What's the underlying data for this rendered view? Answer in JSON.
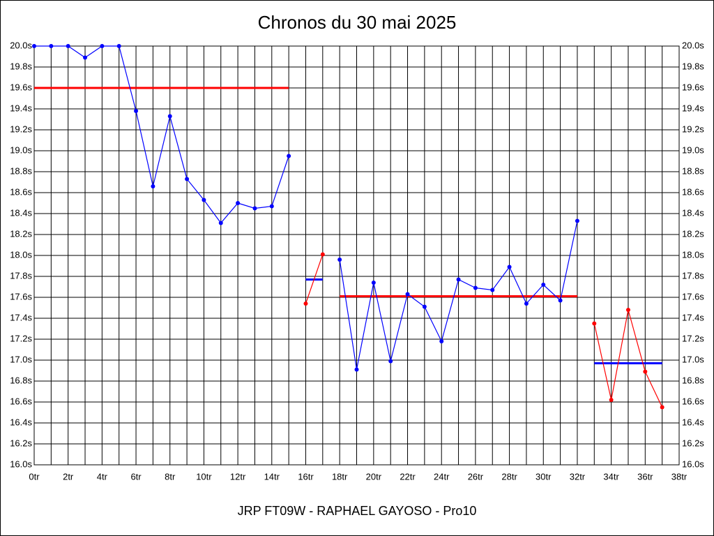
{
  "chart_data": {
    "type": "line",
    "title": "Chronos du 30 mai 2025",
    "x_label": "JRP FT09W - RAPHAEL GAYOSO - Pro10",
    "x": [
      0,
      1,
      2,
      3,
      4,
      5,
      6,
      7,
      8,
      9,
      10,
      11,
      12,
      13,
      14,
      15,
      16,
      17,
      18,
      19,
      20,
      21,
      22,
      23,
      24,
      25,
      26,
      27,
      28,
      29,
      30,
      31,
      32,
      33,
      34,
      35,
      36,
      37
    ],
    "series": [
      {
        "color": "#0000ff",
        "values": [
          20.0,
          20.0,
          20.0,
          19.89,
          20.0,
          20.0,
          19.38,
          18.66,
          19.33,
          18.73,
          18.53,
          18.31,
          18.5,
          18.45,
          18.47,
          18.95,
          null,
          null,
          17.96,
          16.91,
          17.74,
          16.99,
          17.63,
          17.51,
          17.18,
          17.77,
          17.69,
          17.67,
          17.89,
          17.54,
          17.72,
          17.57,
          18.33,
          null,
          null,
          null,
          null,
          null
        ]
      },
      {
        "color": "#ff0000",
        "values": [
          null,
          null,
          null,
          null,
          null,
          null,
          null,
          null,
          null,
          null,
          null,
          null,
          null,
          null,
          null,
          null,
          17.54,
          18.01,
          null,
          null,
          null,
          null,
          null,
          null,
          null,
          null,
          null,
          null,
          null,
          null,
          null,
          null,
          null,
          17.35,
          16.62,
          17.48,
          16.89,
          16.55
        ]
      }
    ],
    "averages": [
      {
        "x": [
          0,
          15
        ],
        "value": 19.6,
        "color": "#ff0000"
      },
      {
        "x": [
          16,
          17
        ],
        "value": 17.77,
        "color": "#0000ff"
      },
      {
        "x": [
          18,
          32
        ],
        "value": 17.61,
        "color": "#ff0000"
      },
      {
        "x": [
          33,
          37
        ],
        "value": 16.97,
        "color": "#0000ff"
      }
    ],
    "xlim": [
      0,
      38
    ],
    "ylim": [
      16.0,
      20.0
    ],
    "xticks": [
      {
        "value": 0,
        "label": "0tr"
      },
      {
        "value": 2,
        "label": "2tr"
      },
      {
        "value": 4,
        "label": "4tr"
      },
      {
        "value": 6,
        "label": "6tr"
      },
      {
        "value": 8,
        "label": "8tr"
      },
      {
        "value": 10,
        "label": "10tr"
      },
      {
        "value": 12,
        "label": "12tr"
      },
      {
        "value": 14,
        "label": "14tr"
      },
      {
        "value": 16,
        "label": "16tr"
      },
      {
        "value": 18,
        "label": "18tr"
      },
      {
        "value": 20,
        "label": "20tr"
      },
      {
        "value": 22,
        "label": "22tr"
      },
      {
        "value": 24,
        "label": "24tr"
      },
      {
        "value": 26,
        "label": "26tr"
      },
      {
        "value": 28,
        "label": "28tr"
      },
      {
        "value": 30,
        "label": "30tr"
      },
      {
        "value": 32,
        "label": "32tr"
      },
      {
        "value": 34,
        "label": "34tr"
      },
      {
        "value": 36,
        "label": "36tr"
      },
      {
        "value": 38,
        "label": "38tr"
      }
    ],
    "xminorticks": [
      1,
      3,
      5,
      7,
      9,
      11,
      13,
      15,
      17,
      19,
      21,
      23,
      25,
      27,
      29,
      31,
      33,
      35,
      37
    ],
    "yticks": [
      {
        "value": 16.0,
        "label": "16.0s"
      },
      {
        "value": 16.2,
        "label": "16.2s"
      },
      {
        "value": 16.4,
        "label": "16.4s"
      },
      {
        "value": 16.6,
        "label": "16.6s"
      },
      {
        "value": 16.8,
        "label": "16.8s"
      },
      {
        "value": 17.0,
        "label": "17.0s"
      },
      {
        "value": 17.2,
        "label": "17.2s"
      },
      {
        "value": 17.4,
        "label": "17.4s"
      },
      {
        "value": 17.6,
        "label": "17.6s"
      },
      {
        "value": 17.8,
        "label": "17.8s"
      },
      {
        "value": 18.0,
        "label": "18.0s"
      },
      {
        "value": 18.2,
        "label": "18.2s"
      },
      {
        "value": 18.4,
        "label": "18.4s"
      },
      {
        "value": 18.6,
        "label": "18.6s"
      },
      {
        "value": 18.8,
        "label": "18.8s"
      },
      {
        "value": 19.0,
        "label": "19.0s"
      },
      {
        "value": 19.2,
        "label": "19.2s"
      },
      {
        "value": 19.4,
        "label": "19.4s"
      },
      {
        "value": 19.6,
        "label": "19.6s"
      },
      {
        "value": 19.8,
        "label": "19.8s"
      },
      {
        "value": 20.0,
        "label": "20.0s"
      }
    ],
    "grid": true
  }
}
